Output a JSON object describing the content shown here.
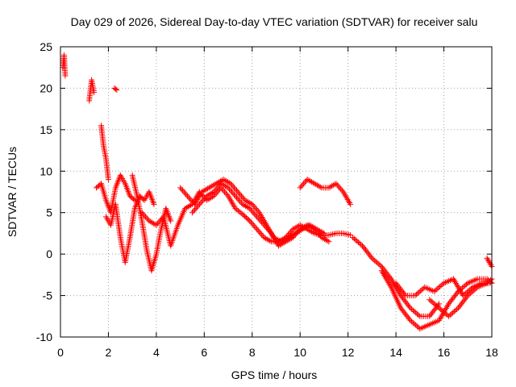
{
  "chart_data": {
    "type": "scatter",
    "title": "Day 029 of 2026, Sidereal Day-to-day VTEC variation (SDTVAR) for receiver salu",
    "xlabel": "GPS time / hours",
    "ylabel": "SDTVAR / TECUs",
    "xlim": [
      0,
      18
    ],
    "ylim": [
      -10,
      25
    ],
    "xticks": [
      0,
      2,
      4,
      6,
      8,
      10,
      12,
      14,
      16,
      18
    ],
    "yticks": [
      -10,
      -5,
      0,
      5,
      10,
      15,
      20,
      25
    ],
    "grid": true,
    "marker": "plus",
    "color": "#ff0000",
    "series": [
      {
        "name": "arc-0",
        "x": [
          0.1,
          0.15,
          0.2
        ],
        "y": [
          22.5,
          24.0,
          21.5
        ]
      },
      {
        "name": "arc-1",
        "x": [
          1.2,
          1.3,
          1.4
        ],
        "y": [
          18.5,
          21.0,
          19.5
        ]
      },
      {
        "name": "arc-2",
        "x": [
          2.25,
          2.35
        ],
        "y": [
          20.0,
          19.8
        ]
      },
      {
        "name": "arc-3",
        "x": [
          1.7,
          1.8,
          1.9,
          2.0
        ],
        "y": [
          15.5,
          13.0,
          11.5,
          9.0
        ]
      },
      {
        "name": "arc-4",
        "x": [
          1.5,
          1.7,
          1.9,
          2.1,
          2.3,
          2.5,
          2.7,
          2.9,
          3.1
        ],
        "y": [
          8.0,
          8.5,
          6.5,
          5.0,
          8.0,
          9.5,
          8.5,
          7.0,
          6.5
        ]
      },
      {
        "name": "arc-5",
        "x": [
          1.9,
          2.1,
          2.3,
          2.5,
          2.7,
          2.9,
          3.1,
          3.3,
          3.5,
          3.7,
          3.9
        ],
        "y": [
          4.5,
          3.5,
          6.0,
          2.0,
          -1.0,
          2.0,
          5.5,
          7.0,
          6.5,
          7.5,
          6.0
        ]
      },
      {
        "name": "arc-6",
        "x": [
          3.0,
          3.2,
          3.4,
          3.6,
          3.8,
          4.0,
          4.2,
          4.4,
          4.6
        ],
        "y": [
          9.5,
          7.0,
          4.0,
          0.5,
          -2.0,
          0.0,
          3.0,
          5.5,
          4.0
        ]
      },
      {
        "name": "arc-7",
        "x": [
          3.4,
          3.7,
          4.0,
          4.3,
          4.6,
          4.9,
          5.2,
          5.5,
          5.8,
          6.1,
          6.4,
          6.7,
          7.0,
          7.3,
          7.6,
          7.9,
          8.2,
          8.5,
          8.8,
          9.1,
          9.4,
          9.7,
          10.0,
          10.3,
          10.6,
          10.9,
          11.2,
          11.5,
          11.8,
          12.1
        ],
        "y": [
          5.0,
          4.0,
          3.5,
          4.5,
          1.0,
          3.5,
          5.5,
          6.0,
          7.5,
          6.5,
          7.0,
          8.0,
          7.0,
          5.5,
          4.8,
          4.0,
          3.0,
          2.0,
          1.5,
          1.5,
          2.0,
          3.0,
          3.5,
          3.0,
          2.5,
          2.2,
          2.3,
          2.5,
          2.5,
          2.3
        ]
      },
      {
        "name": "arc-8",
        "x": [
          5.0,
          5.3,
          5.6,
          5.9,
          6.2,
          6.5,
          6.8,
          7.1,
          7.4,
          7.7,
          8.0,
          8.3,
          8.6,
          8.9,
          9.2,
          9.5,
          9.8,
          10.1,
          10.4,
          10.7,
          11.0
        ],
        "y": [
          8.0,
          7.0,
          6.0,
          7.5,
          8.0,
          8.5,
          9.0,
          8.5,
          7.5,
          6.5,
          6.0,
          5.0,
          3.5,
          2.0,
          1.5,
          2.0,
          2.5,
          3.0,
          3.5,
          3.0,
          2.5
        ]
      },
      {
        "name": "arc-9",
        "x": [
          5.5,
          5.8,
          6.1,
          6.4,
          6.7,
          7.0,
          7.3,
          7.6,
          7.9,
          8.2,
          8.5,
          8.8,
          9.1,
          9.4,
          9.7,
          10.0,
          10.3,
          10.6,
          10.9,
          11.2
        ],
        "y": [
          5.0,
          6.0,
          7.0,
          7.5,
          8.5,
          8.0,
          7.0,
          6.0,
          5.5,
          4.5,
          3.5,
          2.5,
          1.0,
          1.5,
          2.0,
          3.0,
          3.5,
          3.0,
          2.0,
          1.5
        ]
      },
      {
        "name": "arc-10",
        "x": [
          10.0,
          10.3,
          10.6,
          10.9,
          11.2,
          11.5,
          11.8,
          12.1
        ],
        "y": [
          8.0,
          9.0,
          8.5,
          8.0,
          8.0,
          8.5,
          7.5,
          6.0
        ]
      },
      {
        "name": "arc-11",
        "x": [
          12.2,
          12.6,
          13.0,
          13.4,
          13.8,
          14.2,
          14.6,
          15.0,
          15.4,
          15.8
        ],
        "y": [
          2.0,
          1.0,
          -0.5,
          -1.5,
          -3.0,
          -5.0,
          -6.5,
          -7.5,
          -7.5,
          -6.0
        ]
      },
      {
        "name": "arc-12",
        "x": [
          13.4,
          13.8,
          14.2,
          14.6,
          15.0,
          15.4,
          15.8,
          16.2,
          16.6,
          17.0,
          17.4,
          17.8,
          18.0
        ],
        "y": [
          -2.0,
          -4.0,
          -6.5,
          -8.0,
          -9.0,
          -8.5,
          -8.0,
          -6.0,
          -4.5,
          -3.5,
          -3.0,
          -3.0,
          -3.5
        ]
      },
      {
        "name": "arc-13",
        "x": [
          14.0,
          14.4,
          14.8,
          15.2,
          15.6,
          16.0,
          16.4,
          16.8,
          17.2,
          17.6,
          18.0
        ],
        "y": [
          -3.5,
          -5.0,
          -5.0,
          -4.0,
          -4.5,
          -3.5,
          -3.0,
          -5.0,
          -4.0,
          -3.5,
          -3.5
        ]
      },
      {
        "name": "arc-14",
        "x": [
          15.4,
          15.8,
          16.2,
          16.6,
          17.0,
          17.4,
          17.8,
          18.0
        ],
        "y": [
          -5.5,
          -6.5,
          -7.5,
          -6.5,
          -5.0,
          -4.0,
          -3.5,
          -3.0
        ]
      },
      {
        "name": "arc-15",
        "x": [
          17.8,
          17.9,
          18.0
        ],
        "y": [
          -0.5,
          -1.0,
          -1.5
        ]
      }
    ]
  }
}
